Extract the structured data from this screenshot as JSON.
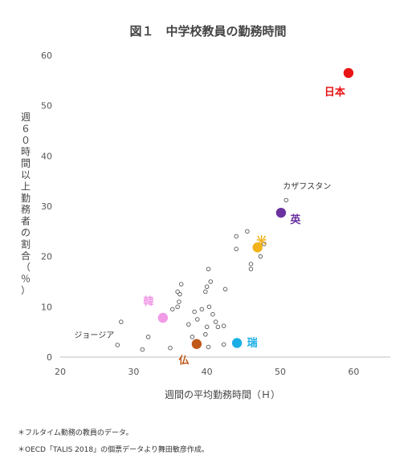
{
  "chart_data": {
    "type": "scatter",
    "title": "図１　中学校教員の勤務時間",
    "xlabel": "週間の平均勤務時間（Ｈ）",
    "ylabel": "週６０時間以上勤務者の割合（％）",
    "xlim": [
      20,
      65
    ],
    "ylim": [
      0,
      60
    ],
    "xticks": [
      20,
      30,
      40,
      50,
      60
    ],
    "yticks": [
      0,
      10,
      20,
      30,
      40,
      50,
      60
    ],
    "grid": false,
    "others": [
      [
        28.3,
        7.0
      ],
      [
        27.8,
        2.4
      ],
      [
        31.2,
        1.5
      ],
      [
        32.0,
        4.0
      ],
      [
        35.0,
        1.8
      ],
      [
        35.3,
        9.5
      ],
      [
        36.0,
        10.0
      ],
      [
        36.2,
        11.0
      ],
      [
        36.3,
        12.5
      ],
      [
        36.0,
        13.0
      ],
      [
        36.5,
        14.5
      ],
      [
        37.5,
        6.5
      ],
      [
        38.0,
        4.0
      ],
      [
        38.3,
        9.0
      ],
      [
        38.7,
        7.5
      ],
      [
        39.3,
        9.5
      ],
      [
        39.8,
        13.0
      ],
      [
        40.0,
        14.0
      ],
      [
        40.2,
        17.5
      ],
      [
        40.5,
        15.0
      ],
      [
        40.3,
        10.0
      ],
      [
        40.0,
        6.0
      ],
      [
        39.8,
        4.5
      ],
      [
        40.2,
        2.0
      ],
      [
        40.8,
        8.5
      ],
      [
        41.2,
        7.0
      ],
      [
        41.5,
        6.0
      ],
      [
        42.3,
        6.2
      ],
      [
        42.3,
        2.5
      ],
      [
        42.5,
        13.5
      ],
      [
        44.0,
        21.5
      ],
      [
        44.0,
        24.0
      ],
      [
        45.5,
        25.0
      ],
      [
        46.0,
        18.5
      ],
      [
        46.0,
        17.5
      ],
      [
        47.3,
        20.0
      ],
      [
        47.8,
        22.5
      ],
      [
        50.8,
        31.2
      ]
    ],
    "highlighted": [
      {
        "label": "日本",
        "x": 59.3,
        "y": 56.5,
        "color": "#e81416"
      },
      {
        "label": "英",
        "x": 50.1,
        "y": 28.7,
        "color": "#6a329f"
      },
      {
        "label": "米",
        "x": 46.9,
        "y": 21.8,
        "color": "#f2b318"
      },
      {
        "label": "韓",
        "x": 34.0,
        "y": 7.8,
        "color": "#f19ae6"
      },
      {
        "label": "仏",
        "x": 38.6,
        "y": 2.6,
        "color": "#c0581a"
      },
      {
        "label": "瑞",
        "x": 44.1,
        "y": 2.8,
        "color": "#1aaee5"
      }
    ],
    "annotations": [
      {
        "text": "カザフスタン",
        "x": 50.8,
        "y": 31.2
      },
      {
        "text": "ジョージア",
        "x": 27.8,
        "y": 2.4
      }
    ]
  },
  "notes": [
    "＊フルタイム勤務の教員のデータ。",
    "＊OECD「TALIS 2018」の個票データより舞田敏彦作成。"
  ]
}
